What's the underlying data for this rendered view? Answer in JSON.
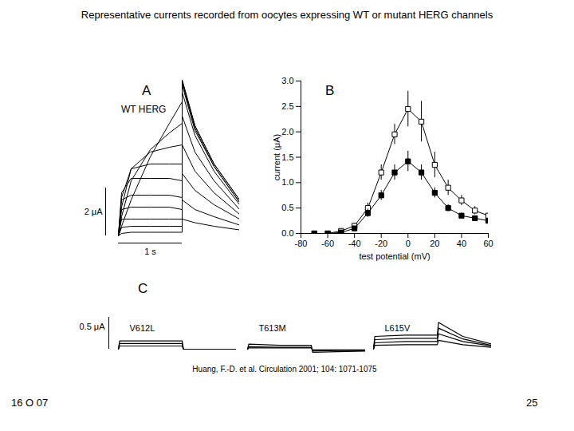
{
  "slide_title": "Representative currents recorded from oocytes expressing WT or mutant HERG channels",
  "source": "Huang, F.-D. et al. Circulation 2001; 104: 1071-1075",
  "footer_left": "16 O 07",
  "page_number": 25,
  "chart_data": [
    {
      "type": "line",
      "panel": "A",
      "title": "WT HERG",
      "color": "#000000",
      "tick_labels": false,
      "xlim": [
        -0.2,
        1.9
      ],
      "ylim": [
        -0.3,
        6.8
      ],
      "scale_bar": {
        "x": 1,
        "x_label": "1 s",
        "y": 2,
        "y_label": "2 μA"
      },
      "x": [
        0,
        0.05,
        0.2,
        0.5,
        0.8,
        1,
        1,
        1.2,
        1.5,
        1.9
      ],
      "series": [
        {
          "values": [
            0,
            0.4,
            1.5,
            3.3,
            4.7,
            5.6,
            6.5,
            4.6,
            3.0,
            1.5
          ]
        },
        {
          "values": [
            0,
            0.8,
            2.3,
            3.6,
            4.3,
            4.7,
            6.5,
            4.6,
            3.0,
            1.5
          ]
        },
        {
          "values": [
            0,
            1.2,
            2.8,
            3.5,
            3.7,
            3.8,
            6.4,
            4.5,
            2.9,
            1.4
          ]
        },
        {
          "values": [
            0,
            1.6,
            2.8,
            3.0,
            3.0,
            3.0,
            6.3,
            4.4,
            2.9,
            1.4
          ]
        },
        {
          "values": [
            0,
            1.8,
            2.4,
            2.4,
            2.4,
            2.3,
            6.0,
            4.2,
            2.7,
            1.3
          ]
        },
        {
          "values": [
            0,
            1.5,
            1.7,
            1.7,
            1.7,
            1.6,
            5.0,
            3.5,
            2.3,
            1.1
          ]
        },
        {
          "values": [
            0,
            1.1,
            1.2,
            1.2,
            1.2,
            1.1,
            3.8,
            2.7,
            1.8,
            0.9
          ]
        },
        {
          "values": [
            0,
            0.7,
            0.7,
            0.7,
            0.7,
            0.7,
            2.6,
            1.9,
            1.3,
            0.7
          ]
        },
        {
          "values": [
            0,
            0.35,
            0.4,
            0.4,
            0.4,
            0.4,
            1.5,
            1.1,
            0.8,
            0.45
          ]
        },
        {
          "values": [
            0,
            0.1,
            0.15,
            0.15,
            0.15,
            0.15,
            0.7,
            0.55,
            0.4,
            0.25
          ]
        }
      ]
    },
    {
      "type": "line",
      "panel": "B",
      "x_label": "test potential (mV)",
      "y_label": "current (μA)",
      "xlim": [
        -80,
        60
      ],
      "xticks": [
        -80,
        -60,
        -40,
        -20,
        0,
        20,
        40,
        60
      ],
      "ylim": [
        0,
        3
      ],
      "yticks": [
        {
          "value": 0,
          "label": "0.0"
        },
        {
          "value": 0.5,
          "label": "0.5"
        },
        {
          "value": 1,
          "label": "1.0"
        },
        {
          "value": 1.5,
          "label": "1.5"
        },
        {
          "value": 2,
          "label": "2.0"
        },
        {
          "value": 2.5,
          "label": "2.5"
        },
        {
          "value": 3,
          "label": "3.0"
        }
      ],
      "x": [
        -70,
        -60,
        -50,
        -40,
        -30,
        -20,
        -10,
        0,
        10,
        20,
        30,
        40,
        50,
        60
      ],
      "series": [
        {
          "color": "#000000",
          "marker": "square-open",
          "line_style": "solid",
          "values": [
            0.0,
            0.0,
            0.05,
            0.15,
            0.5,
            1.2,
            1.95,
            2.45,
            2.2,
            1.35,
            0.9,
            0.65,
            0.45,
            0.35
          ],
          "errors": [
            0.02,
            0.02,
            0.03,
            0.05,
            0.1,
            0.15,
            0.2,
            0.35,
            0.4,
            0.25,
            0.15,
            0.1,
            0.08,
            0.05
          ]
        },
        {
          "color": "#000000",
          "marker": "square",
          "line_style": "solid",
          "values": [
            0.0,
            0.0,
            0.02,
            0.1,
            0.4,
            0.75,
            1.2,
            1.42,
            1.2,
            0.8,
            0.5,
            0.35,
            0.3,
            0.25
          ],
          "errors": [
            0.02,
            0.02,
            0.02,
            0.04,
            0.08,
            0.1,
            0.15,
            0.2,
            0.15,
            0.1,
            0.07,
            0.05,
            0.04,
            0.04
          ]
        }
      ]
    },
    {
      "type": "line",
      "panel": "C",
      "color": "#000000",
      "tick_labels": false,
      "xlim": [
        -0.15,
        1.85
      ],
      "ylim": [
        -0.1,
        0.5
      ],
      "scale_bar": {
        "y": 0.5,
        "y_label": "0.5 μA"
      },
      "x": [
        0,
        0.02,
        0.5,
        1,
        1.02,
        1.4,
        1.85
      ],
      "panels": [
        {
          "title": "V612L",
          "series": [
            {
              "values": [
                0,
                0.13,
                0.13,
                0.13,
                0,
                0,
                0
              ]
            },
            {
              "values": [
                0,
                0.09,
                0.09,
                0.09,
                0,
                0,
                0
              ]
            },
            {
              "values": [
                0,
                0.05,
                0.05,
                0.05,
                0,
                0,
                0
              ]
            }
          ]
        },
        {
          "title": "T613M",
          "series": [
            {
              "values": [
                0,
                0.08,
                0.06,
                0.06,
                -0.05,
                -0.04,
                -0.03
              ]
            },
            {
              "values": [
                0,
                0.04,
                0.03,
                0.03,
                -0.03,
                -0.02,
                -0.02
              ]
            },
            {
              "values": [
                0,
                0.02,
                0.02,
                0.02,
                -0.01,
                -0.01,
                -0.01
              ]
            }
          ]
        },
        {
          "title": "L615V",
          "series": [
            {
              "values": [
                0,
                0.2,
                0.22,
                0.22,
                0.42,
                0.2,
                0.08
              ]
            },
            {
              "values": [
                0,
                0.15,
                0.17,
                0.17,
                0.33,
                0.16,
                0.06
              ]
            },
            {
              "values": [
                0,
                0.1,
                0.12,
                0.12,
                0.24,
                0.12,
                0.05
              ]
            },
            {
              "values": [
                0,
                0.06,
                0.07,
                0.07,
                0.14,
                0.07,
                0.03
              ]
            }
          ]
        }
      ]
    }
  ]
}
